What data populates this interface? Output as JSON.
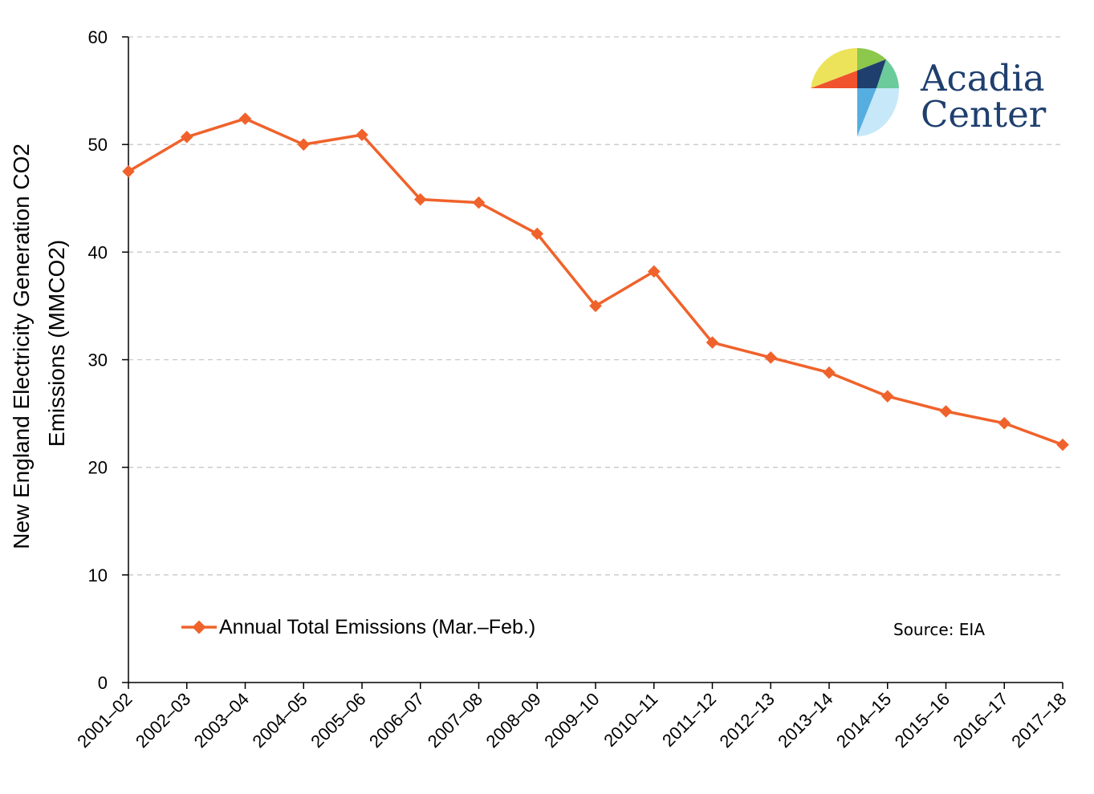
{
  "chart_data": {
    "type": "line",
    "title": "",
    "xlabel": "",
    "ylabel": [
      "New England Electricity Generation CO2",
      "Emissions (MMCO2)"
    ],
    "ylim": [
      0,
      60
    ],
    "yticks": [
      0,
      10,
      20,
      30,
      40,
      50,
      60
    ],
    "grid": true,
    "legend_position": "bottom-left",
    "categories": [
      "2001–02",
      "2002–03",
      "2003–04",
      "2004–05",
      "2005–06",
      "2006–07",
      "2007–08",
      "2008–09",
      "2009–10",
      "2010–11",
      "2011–12",
      "2012–13",
      "2013–14",
      "2014–15",
      "2015–16",
      "2016–17",
      "2017–18"
    ],
    "series": [
      {
        "name": "Annual Total Emissions (Mar.–Feb.)",
        "color": "#f0622b",
        "values": [
          47.5,
          50.7,
          52.4,
          50.0,
          50.9,
          44.9,
          44.6,
          41.7,
          35.0,
          38.2,
          31.6,
          30.2,
          28.8,
          26.6,
          25.2,
          24.1,
          22.1
        ]
      }
    ],
    "annotations": {
      "source": "Source: EIA"
    }
  },
  "logo": {
    "line1": "Acadia",
    "line2": "Center",
    "colors": {
      "yellow": "#ece35b",
      "red": "#f0532d",
      "green": "#8cc84b",
      "navy": "#1f3f6e",
      "teal": "#6ccb9a",
      "blue": "#56aee0",
      "lightblue": "#c7e8f8"
    }
  }
}
